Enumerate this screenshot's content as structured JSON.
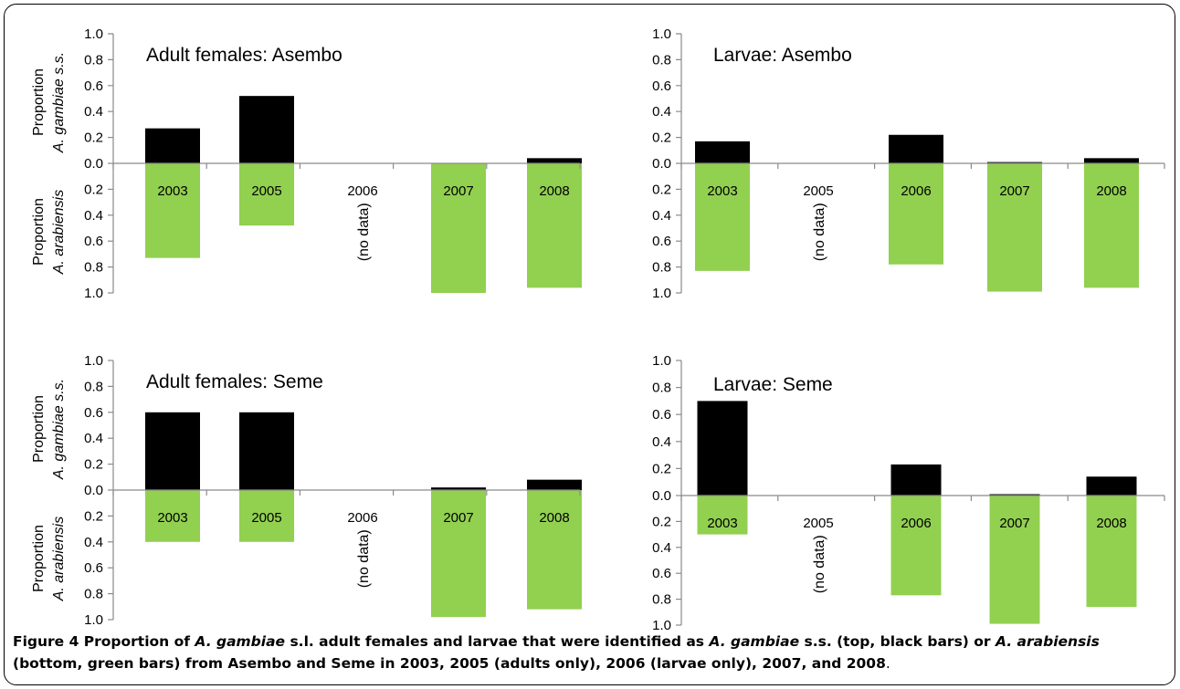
{
  "chart_data": [
    {
      "type": "bar",
      "title": "Adult females: Asembo",
      "ylabel_top": [
        "Proportion",
        "A. gambiae s.s."
      ],
      "ylabel_bottom": [
        "Proportion",
        "A. arabiensis"
      ],
      "top_ticks": [
        "0.0",
        "0.2",
        "0.4",
        "0.6",
        "0.8",
        "1.0"
      ],
      "bottom_ticks": [
        "0.2",
        "0.4",
        "0.6",
        "0.8",
        "1.0"
      ],
      "ylim_top": [
        0,
        1
      ],
      "ylim_bottom": [
        0,
        1
      ],
      "categories": [
        "2003",
        "2005",
        "2006",
        "2007",
        "2008"
      ],
      "series": [
        {
          "name": "A. gambiae s.s.",
          "color": "#000000",
          "values": [
            0.27,
            0.52,
            null,
            0,
            0.04
          ]
        },
        {
          "name": "A. arabiensis",
          "color": "#92d050",
          "values": [
            0.73,
            0.48,
            null,
            1.0,
            0.96
          ]
        }
      ],
      "annotations": [
        {
          "category": "2006",
          "text": "(no data)"
        }
      ]
    },
    {
      "type": "bar",
      "title": "Larvae: Asembo",
      "top_ticks": [
        "0.0",
        "0.2",
        "0.4",
        "0.6",
        "0.8",
        "1.0"
      ],
      "bottom_ticks": [
        "0.2",
        "0.4",
        "0.6",
        "0.8",
        "1.0"
      ],
      "ylim_top": [
        0,
        1
      ],
      "ylim_bottom": [
        0,
        1
      ],
      "categories": [
        "2003",
        "2005",
        "2006",
        "2007",
        "2008"
      ],
      "series": [
        {
          "name": "A. gambiae s.s.",
          "color": "#000000",
          "values": [
            0.17,
            null,
            0.22,
            0.01,
            0.04
          ]
        },
        {
          "name": "A. arabiensis",
          "color": "#92d050",
          "values": [
            0.83,
            null,
            0.78,
            0.99,
            0.96
          ]
        }
      ],
      "annotations": [
        {
          "category": "2005",
          "text": "(no data)"
        }
      ]
    },
    {
      "type": "bar",
      "title": "Adult females: Seme",
      "ylabel_top": [
        "Proportion",
        "A. gambiae s.s."
      ],
      "ylabel_bottom": [
        "Proportion",
        "A. arabiensis"
      ],
      "top_ticks": [
        "0.0",
        "0.2",
        "0.4",
        "0.6",
        "0.8",
        "1.0"
      ],
      "bottom_ticks": [
        "0.2",
        "0.4",
        "0.6",
        "0.8",
        "1.0"
      ],
      "ylim_top": [
        0,
        1
      ],
      "ylim_bottom": [
        0,
        1
      ],
      "categories": [
        "2003",
        "2005",
        "2006",
        "2007",
        "2008"
      ],
      "series": [
        {
          "name": "A. gambiae s.s.",
          "color": "#000000",
          "values": [
            0.6,
            0.6,
            null,
            0.02,
            0.08
          ]
        },
        {
          "name": "A. arabiensis",
          "color": "#92d050",
          "values": [
            0.4,
            0.4,
            null,
            0.98,
            0.92
          ]
        }
      ],
      "annotations": [
        {
          "category": "2006",
          "text": "(no data)"
        }
      ]
    },
    {
      "type": "bar",
      "title": "Larvae: Seme",
      "top_ticks": [
        "0.0",
        "0.2",
        "0.4",
        "0.6",
        "0.8",
        "1.0"
      ],
      "bottom_ticks": [
        "0.2",
        "0.4",
        "0.6",
        "0.8",
        "1.0"
      ],
      "ylim_top": [
        0,
        1
      ],
      "ylim_bottom": [
        0,
        1
      ],
      "categories": [
        "2003",
        "2005",
        "2006",
        "2007",
        "2008"
      ],
      "series": [
        {
          "name": "A. gambiae s.s.",
          "color": "#000000",
          "values": [
            0.7,
            null,
            0.23,
            0.01,
            0.14
          ]
        },
        {
          "name": "A. arabiensis",
          "color": "#92d050",
          "values": [
            0.3,
            null,
            0.77,
            0.99,
            0.86
          ]
        }
      ],
      "annotations": [
        {
          "category": "2005",
          "text": "(no data)"
        }
      ]
    }
  ],
  "caption": {
    "label": "Figure 4",
    "p1": " Proportion of ",
    "i1": "A. gambiae",
    "p2": " s.l. adult females and larvae that were identified as ",
    "i2": "A. gambiae",
    "p3": " s.s. (top, black bars) or ",
    "i3": "A. arabiensis",
    "p4": " (bottom, green bars) from Asembo and Seme in 2003, 2005 (adults only), 2006 (larvae only), 2007, and 2008",
    "end": "."
  }
}
